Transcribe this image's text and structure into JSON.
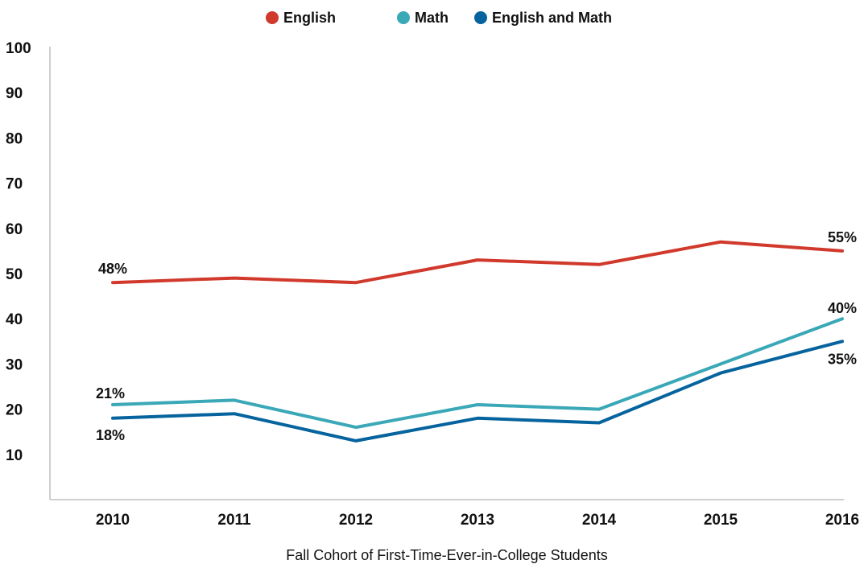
{
  "chart_data": {
    "type": "line",
    "title": "",
    "xlabel": "Fall Cohort of First-Time-Ever-in-College Students",
    "ylabel": "",
    "categories": [
      "2010",
      "2011",
      "2012",
      "2013",
      "2014",
      "2015",
      "2016"
    ],
    "y_ticks": [
      10,
      20,
      30,
      40,
      50,
      60,
      70,
      80,
      90,
      100
    ],
    "ylim": [
      0,
      100
    ],
    "grid": false,
    "legend_position": "top-center",
    "series": [
      {
        "name": "English",
        "color": "#d0392b",
        "values": [
          48,
          49,
          48,
          53,
          52,
          57,
          55
        ]
      },
      {
        "name": "Math",
        "color": "#3aa8b7",
        "values": [
          21,
          22,
          16,
          21,
          20,
          30,
          40
        ]
      },
      {
        "name": "English and Math",
        "color": "#05639e",
        "values": [
          18,
          19,
          13,
          18,
          17,
          28,
          35
        ]
      }
    ],
    "data_labels": [
      {
        "series": "English",
        "category": "2010",
        "text": "48%"
      },
      {
        "series": "English",
        "category": "2016",
        "text": "55%"
      },
      {
        "series": "Math",
        "category": "2010",
        "text": "21%"
      },
      {
        "series": "Math",
        "category": "2016",
        "text": "40%"
      },
      {
        "series": "English and Math",
        "category": "2010",
        "text": "18%"
      },
      {
        "series": "English and Math",
        "category": "2016",
        "text": "35%"
      }
    ]
  }
}
